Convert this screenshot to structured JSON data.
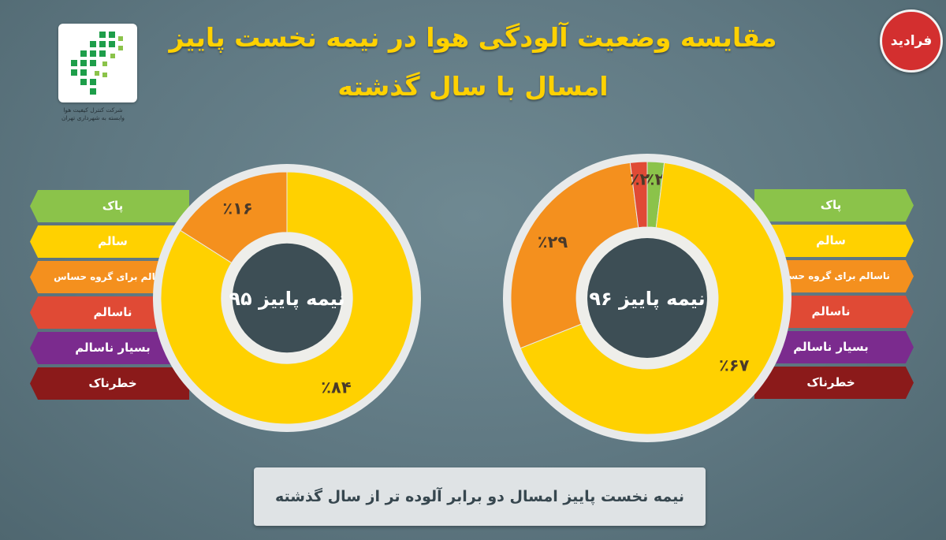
{
  "title_line1": "مقایسه وضعیت آلودگی هوا در نیمه نخست پاییز",
  "title_line2": "امسال با سال گذشته",
  "logo_caption_line1": "شرکت کنترل کیفیت هوا",
  "logo_caption_line2": "وابسته به شهرداری تهران",
  "badge_text": "فرادید",
  "legend_labels": [
    "پاک",
    "سالم",
    "ناسالم برای گروه حساس",
    "ناسالم",
    "بسیار ناسالم",
    "خطرناک"
  ],
  "colors": {
    "clean": "#8bc34a",
    "healthy": "#ffd100",
    "sensitive": "#f4901e",
    "unhealthy": "#e04a35",
    "very_unhealthy": "#7b2b8e",
    "hazardous": "#8b1a1a"
  },
  "chart_data": [
    {
      "type": "pie",
      "center_label": "نیمه پاییز ۹۵",
      "categories": [
        "پاک",
        "سالم",
        "ناسالم برای گروه حساس",
        "ناسالم",
        "بسیار ناسالم",
        "خطرناک"
      ],
      "values": [
        0,
        84,
        16,
        0,
        0,
        0
      ],
      "value_labels": [
        "",
        "٪۸۴",
        "٪۱۶",
        "",
        "",
        ""
      ]
    },
    {
      "type": "pie",
      "center_label": "نیمه پاییز ۹۶",
      "categories": [
        "پاک",
        "سالم",
        "ناسالم برای گروه حساس",
        "ناسالم",
        "بسیار ناسالم",
        "خطرناک"
      ],
      "values": [
        2,
        67,
        29,
        2,
        0,
        0
      ],
      "value_labels": [
        "٪۲",
        "٪۶۷",
        "٪۲۹",
        "٪۲",
        "",
        ""
      ]
    }
  ],
  "footer_text": "نیمه نخست پاییز امسال دو برابر آلوده تر از سال گذشته"
}
